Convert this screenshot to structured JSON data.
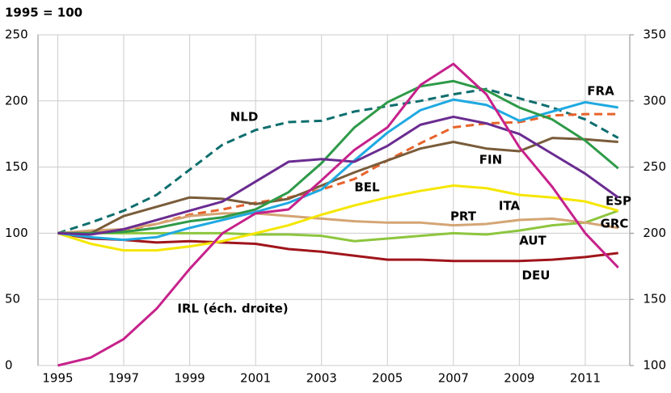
{
  "chart_data": {
    "type": "line",
    "subtitle": "1995 = 100",
    "x": [
      1995,
      1996,
      1997,
      1998,
      1999,
      2000,
      2001,
      2002,
      2003,
      2004,
      2005,
      2006,
      2007,
      2008,
      2009,
      2010,
      2011,
      2012
    ],
    "xlim": [
      1994.4,
      2012.35
    ],
    "xticks": [
      1995,
      1997,
      1999,
      2001,
      2003,
      2005,
      2007,
      2009,
      2011
    ],
    "ylim": [
      0,
      250
    ],
    "yticks": [
      0,
      50,
      100,
      150,
      200,
      250
    ],
    "y2lim": [
      100,
      350
    ],
    "y2ticks": [
      100,
      150,
      200,
      250,
      300,
      350
    ],
    "grid": true,
    "series": [
      {
        "name": "NLD",
        "color": "#0f6e6e",
        "dash": true,
        "values": [
          100,
          108,
          117,
          129,
          148,
          167,
          178,
          184,
          185,
          192,
          196,
          200,
          205,
          209,
          202,
          195,
          186,
          172
        ]
      },
      {
        "name": "BEL",
        "color": "#e8632b",
        "dash": true,
        "values": [
          100,
          101,
          102,
          107,
          114,
          118,
          123,
          127,
          133,
          141,
          155,
          168,
          180,
          183,
          184,
          189,
          190,
          190
        ]
      },
      {
        "name": "DEU",
        "color": "#a0151b",
        "values": [
          100,
          96,
          95,
          93,
          94,
          93,
          92,
          88,
          86,
          83,
          80,
          80,
          79,
          79,
          79,
          80,
          82,
          85
        ]
      },
      {
        "name": "AUT",
        "color": "#8dc63f",
        "values": [
          100,
          100,
          100,
          100,
          100,
          100,
          99,
          99,
          98,
          94,
          96,
          98,
          100,
          99,
          102,
          106,
          108,
          117
        ]
      },
      {
        "name": "PRT",
        "color": "#d4a574",
        "values": [
          100,
          102,
          103,
          107,
          113,
          115,
          115,
          113,
          111,
          109,
          108,
          108,
          106,
          107,
          110,
          111,
          108,
          104
        ]
      },
      {
        "name": "ITA",
        "color": "#f5e600",
        "values": [
          100,
          92,
          87,
          87,
          90,
          94,
          100,
          106,
          114,
          121,
          127,
          132,
          136,
          134,
          129,
          127,
          124,
          117
        ]
      },
      {
        "name": "FIN",
        "color": "#7a5c3a",
        "values": [
          100,
          100,
          113,
          120,
          127,
          126,
          122,
          126,
          136,
          146,
          155,
          164,
          169,
          164,
          162,
          172,
          171,
          169
        ]
      },
      {
        "name": "FRA",
        "color": "#1fa9e1",
        "values": [
          100,
          97,
          95,
          97,
          104,
          110,
          116,
          123,
          133,
          155,
          176,
          193,
          201,
          197,
          185,
          192,
          199,
          195
        ]
      },
      {
        "name": "ESP",
        "color": "#2e9a48",
        "values": [
          100,
          100,
          101,
          104,
          109,
          112,
          118,
          131,
          153,
          180,
          199,
          211,
          215,
          208,
          195,
          186,
          170,
          149
        ]
      },
      {
        "name": "GRC",
        "color": "#6a2c91",
        "values": [
          100,
          99,
          103,
          110,
          117,
          124,
          139,
          154,
          156,
          154,
          166,
          182,
          188,
          183,
          175,
          160,
          145,
          127
        ]
      },
      {
        "name": "IRL (éch. droite)",
        "color": "#c6228b",
        "axis": "y2",
        "values": [
          100,
          106,
          120,
          143,
          173,
          200,
          215,
          218,
          240,
          263,
          280,
          312,
          328,
          305,
          265,
          235,
          200,
          174
        ]
      }
    ]
  }
}
